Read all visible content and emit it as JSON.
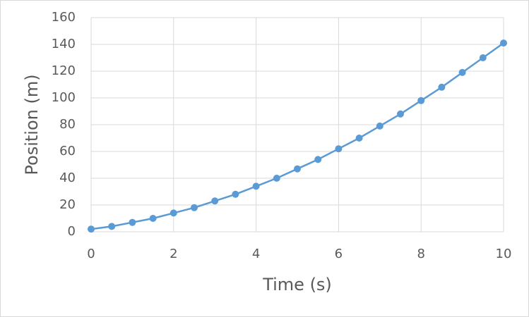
{
  "chart_data": {
    "type": "scatter",
    "x_label": "Time (s)",
    "y_label": "Position (m)",
    "series": [
      {
        "name": "Position",
        "color": "#5b9bd5",
        "x": [
          0,
          0.5,
          1,
          1.5,
          2,
          2.5,
          3,
          3.5,
          4,
          4.5,
          5,
          5.5,
          6,
          6.5,
          7,
          7.5,
          8,
          8.5,
          9,
          9.5,
          10
        ],
        "values": [
          2,
          4,
          7,
          10,
          14,
          18,
          23,
          28,
          34,
          40,
          47,
          54,
          62,
          70,
          79,
          88,
          98,
          108,
          119,
          130,
          141
        ]
      }
    ],
    "xlim": [
      0,
      10
    ],
    "xticks": [
      0,
      2,
      4,
      6,
      8,
      10
    ],
    "ylim": [
      0,
      160
    ],
    "yticks": [
      0,
      20,
      40,
      60,
      80,
      100,
      120,
      140,
      160
    ],
    "grid": true
  }
}
